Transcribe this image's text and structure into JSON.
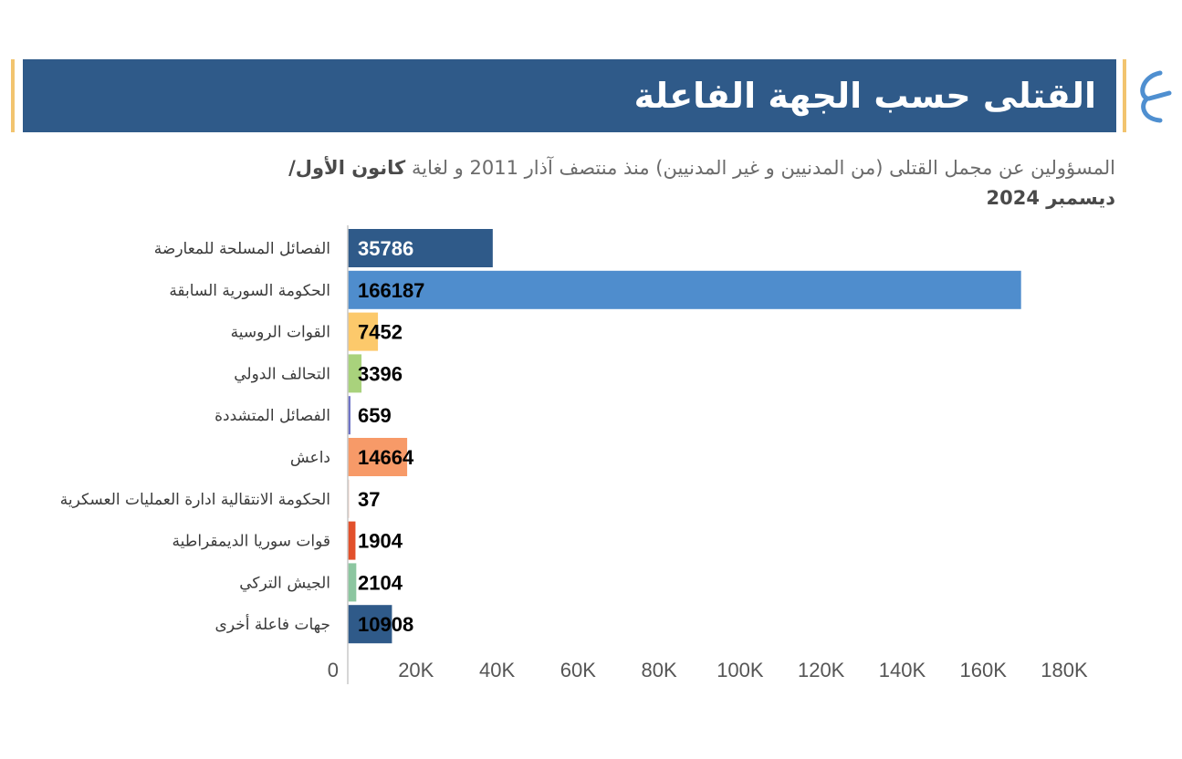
{
  "header": {
    "title": "القتلى حسب الجهة الفاعلة",
    "subtitle_part1": "المسؤولين عن مجمل القتلى (من المدنيين و غير المدنيين) منذ منتصف آذار 2011 و لغاية",
    "subtitle_bold1": "كانون الأول/",
    "subtitle_bold2": "ديسمبر 2024"
  },
  "logo": {
    "icon": "brand-logo-icon",
    "color": "#4f8fd0"
  },
  "colors": {
    "title_bar": "#2f5a89",
    "accent_rule": "#f2c46f"
  },
  "chart_data": {
    "type": "bar",
    "orientation": "horizontal",
    "categories": [
      "الفصائل المسلحة للمعارضة",
      "الحكومة السورية السابقة",
      "القوات الروسية",
      "التحالف الدولي",
      "الفصائل المتشددة",
      "داعش",
      "الحكومة الانتقالية ادارة العمليات العسكرية",
      "قوات سوريا الديمقراطية",
      "الجيش التركي",
      "جهات فاعلة أخرى"
    ],
    "values": [
      35786,
      166187,
      7452,
      3396,
      659,
      14664,
      37,
      1904,
      2104,
      10908
    ],
    "value_labels": [
      "35786",
      "166187",
      "7452",
      "3396",
      "659",
      "14664",
      "37",
      "1904",
      "2104",
      "10908"
    ],
    "bar_colors": [
      "#2f5a89",
      "#4f8dcd",
      "#fcc96b",
      "#a9d27c",
      "#6a6fc4",
      "#f79a68",
      "#f3cfc3",
      "#e2502b",
      "#8cc6a0",
      "#2f5a89"
    ],
    "label_colors": [
      "#ffffff",
      "#000000",
      "#000000",
      "#000000",
      "#000000",
      "#000000",
      "#000000",
      "#000000",
      "#000000",
      "#000000"
    ],
    "xlim": [
      0,
      180000
    ],
    "x_ticks": [
      0,
      20000,
      40000,
      60000,
      80000,
      100000,
      120000,
      140000,
      160000,
      180000
    ],
    "x_tick_labels": [
      "0",
      "20K",
      "40K",
      "60K",
      "80K",
      "100K",
      "120K",
      "140K",
      "160K",
      "180K"
    ],
    "grid": false,
    "legend": "none"
  }
}
